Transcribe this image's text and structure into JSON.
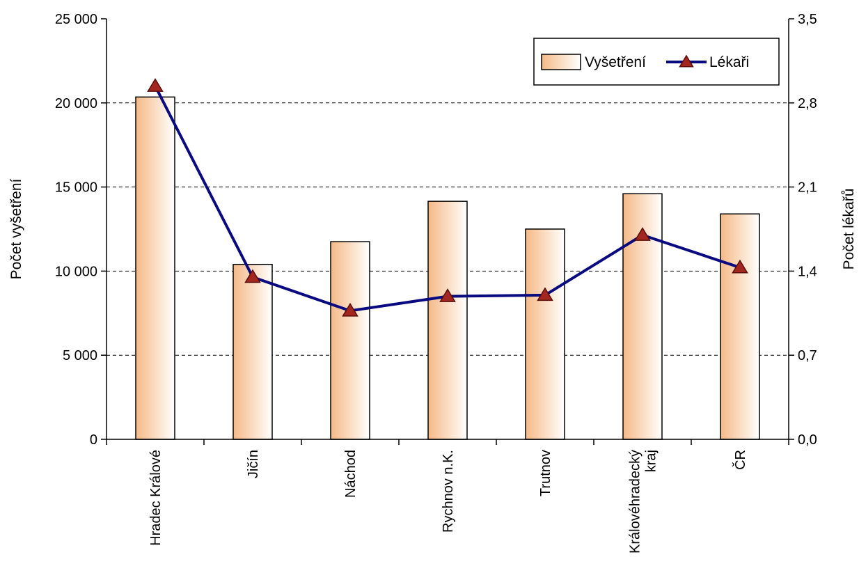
{
  "chart_data": {
    "type": "bar",
    "categories": [
      [
        "Hradec Králové"
      ],
      [
        "Jičín"
      ],
      [
        "Náchod"
      ],
      [
        "Rychnov n.K."
      ],
      [
        "Trutnov"
      ],
      [
        "Královéhradecký",
        "kraj"
      ],
      [
        "ČR"
      ]
    ],
    "series": [
      {
        "name": "Vyšetření",
        "type": "bar",
        "axis": "left",
        "values": [
          20350,
          10400,
          11750,
          14150,
          12500,
          14600,
          13400
        ],
        "color": "#f5b987"
      },
      {
        "name": "Lékaři",
        "type": "line",
        "axis": "right",
        "values": [
          2.94,
          1.35,
          1.07,
          1.19,
          1.2,
          1.7,
          1.43
        ],
        "color": "#0a0a80",
        "marker_color": "#a32620"
      }
    ],
    "ylabel_left": "Počet vyšetření",
    "ylabel_right": "Počet lékařů",
    "ylim_left": [
      0,
      25000
    ],
    "ylim_right": [
      0,
      3.5
    ],
    "yticks_left": [
      "0",
      "5 000",
      "10 000",
      "15 000",
      "20 000",
      "25 000"
    ],
    "yticks_right": [
      "0,0",
      "0,7",
      "1,4",
      "2,1",
      "2,8",
      "3,5"
    ],
    "grid": "horizontal-dashed",
    "legend_position": "top-right"
  }
}
